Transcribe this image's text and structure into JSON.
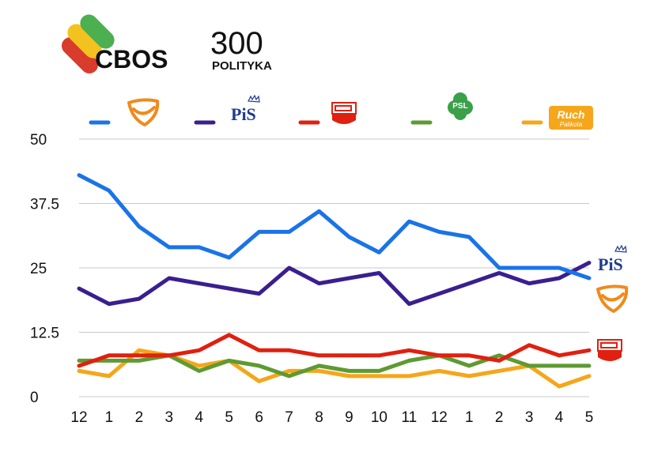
{
  "header": {
    "logo_cbos": "CBOS",
    "logo_300_number": "300",
    "logo_300_word": "POLITYKA"
  },
  "legend": [
    {
      "series": "PO",
      "color": "#1a73e8",
      "logo": "po-logo"
    },
    {
      "series": "PiS",
      "color": "#3a1f8f",
      "logo": "pis-logo",
      "logo_text": "PiS"
    },
    {
      "series": "SLD",
      "color": "#e02010",
      "logo": "sld-logo"
    },
    {
      "series": "PSL",
      "color": "#5e9a32",
      "logo": "psl-logo",
      "logo_text": "PSL"
    },
    {
      "series": "RP",
      "color": "#f5a61a",
      "logo": "ruch-palikota-logo",
      "logo_text": "Ruch",
      "logo_subtext": "Palikota"
    }
  ],
  "chart_data": {
    "type": "line",
    "x": [
      "12",
      "1",
      "2",
      "3",
      "4",
      "5",
      "6",
      "7",
      "8",
      "9",
      "10",
      "11",
      "12",
      "1",
      "2",
      "3",
      "4",
      "5"
    ],
    "yticks": [
      "50",
      "37.5",
      "25",
      "12.5",
      "0"
    ],
    "ylim": [
      0,
      50
    ],
    "grid": true,
    "series": [
      {
        "key": "PO",
        "color": "#1a73e8",
        "values": [
          43,
          40,
          33,
          29,
          29,
          27,
          32,
          32,
          36,
          31,
          28,
          34,
          32,
          31,
          25,
          25,
          25,
          23
        ]
      },
      {
        "key": "PiS",
        "color": "#3a1f8f",
        "values": [
          21,
          18,
          19,
          23,
          22,
          21,
          20,
          25,
          22,
          23,
          24,
          18,
          20,
          22,
          24,
          22,
          23,
          26
        ]
      },
      {
        "key": "SLD",
        "color": "#e02010",
        "values": [
          6,
          8,
          8,
          8,
          9,
          12,
          9,
          9,
          8,
          8,
          8,
          9,
          8,
          8,
          7,
          10,
          8,
          9
        ]
      },
      {
        "key": "PSL",
        "color": "#5e9a32",
        "values": [
          7,
          7,
          7,
          8,
          5,
          7,
          6,
          4,
          6,
          5,
          5,
          7,
          8,
          6,
          8,
          6,
          6,
          6
        ]
      },
      {
        "key": "RP",
        "color": "#f5a61a",
        "values": [
          5,
          4,
          9,
          8,
          6,
          7,
          3,
          5,
          5,
          4,
          4,
          4,
          5,
          4,
          5,
          6,
          2,
          4
        ]
      }
    ],
    "end_labels": [
      {
        "series": "PiS",
        "logo": "pis-logo",
        "logo_text": "PiS"
      },
      {
        "series": "PO",
        "logo": "po-logo"
      },
      {
        "series": "SLD",
        "logo": "sld-logo"
      }
    ]
  }
}
